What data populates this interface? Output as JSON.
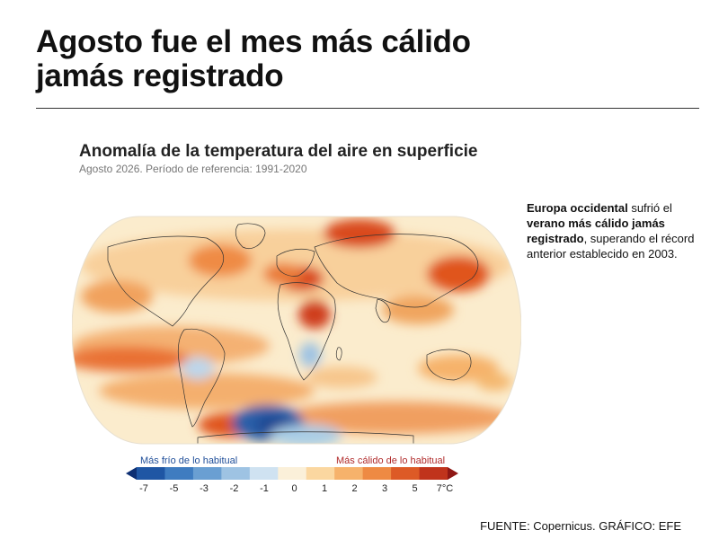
{
  "headline": {
    "line1": "Agosto fue el mes más cálido",
    "line2": "jamás registrado"
  },
  "map": {
    "title": "Anomalía de la temperatura del aire en superficie",
    "subtitle": "Agosto 2026. Período de referencia: 1991-2020",
    "projection": "robinson",
    "palette": {
      "ocean_base": "#fbeccd",
      "cold_strong": "#2c5fa8",
      "cold_mild": "#a9cde6",
      "warm_mild": "#f4b870",
      "warm_strong": "#e0551f",
      "warm_extreme": "#b5221a"
    }
  },
  "note": {
    "part1_bold": "Europa occidental",
    "part2": " sufrió el ",
    "part3_bold": "verano más cálido jamás registrado",
    "part4": ",  superando el récord anterior establecido en 2003."
  },
  "legend": {
    "cold_label": "Más frío de lo habitual",
    "warm_label": "Más cálido de lo habitual",
    "ticks": [
      {
        "label": "-7",
        "value": -7
      },
      {
        "label": "-5",
        "value": -5
      },
      {
        "label": "-3",
        "value": -3
      },
      {
        "label": "-2",
        "value": -2
      },
      {
        "label": "-1",
        "value": -1
      },
      {
        "label": "0",
        "value": 0
      },
      {
        "label": "1",
        "value": 1
      },
      {
        "label": "2",
        "value": 2
      },
      {
        "label": "3",
        "value": 3
      },
      {
        "label": "5",
        "value": 5
      },
      {
        "label": "7°C",
        "value": 7
      }
    ],
    "colors": [
      "#0d2f73",
      "#1f56a4",
      "#3f7cc0",
      "#6a9fd2",
      "#9ec3e3",
      "#cfe2f1",
      "#fbf0d9",
      "#fbd7a0",
      "#f6b26b",
      "#ee8a43",
      "#dd5a26",
      "#c0331c",
      "#8f1714"
    ]
  },
  "source": "FUENTE: Copernicus. GRÁFICO: EFE"
}
